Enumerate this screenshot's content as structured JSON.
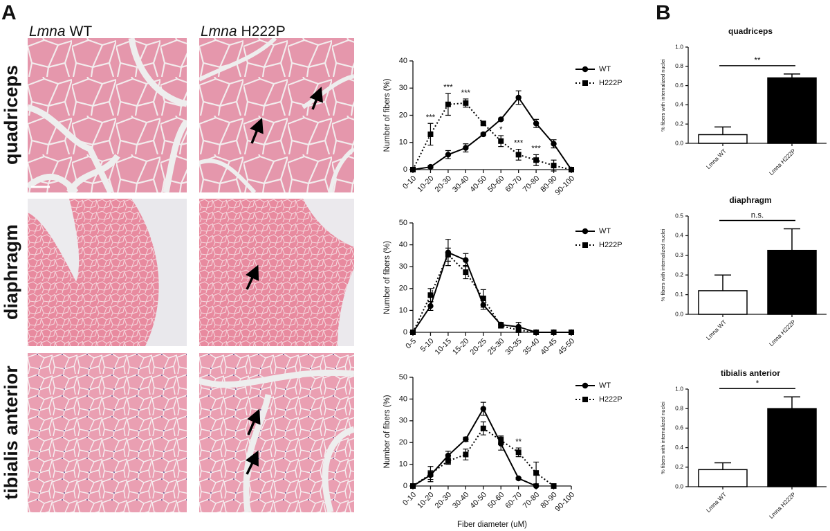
{
  "panel_labels": [
    "A",
    "B"
  ],
  "column_headers": [
    {
      "gene": "Lmna",
      "genotype": "WT"
    },
    {
      "gene": "Lmna",
      "genotype": "H222P"
    }
  ],
  "row_labels": [
    "quadriceps",
    "diaphragm",
    "tibialis anterior"
  ],
  "chart_data": [
    {
      "type": "line",
      "ylabel": "Number of fibers (%)",
      "categories": [
        "0-10",
        "10-20",
        "20-30",
        "30-40",
        "40-50",
        "50-60",
        "60-70",
        "70-80",
        "80-90",
        "90-100"
      ],
      "ylim": [
        0,
        40
      ],
      "yticks": [
        0,
        10,
        20,
        30,
        40
      ],
      "series": [
        {
          "name": "WT",
          "color": "#000000",
          "marker": "circle",
          "line_style": "solid",
          "values": [
            0,
            1,
            5.5,
            8,
            13,
            18.5,
            26.5,
            17,
            9.5,
            0
          ],
          "errors": [
            0,
            0.5,
            1.5,
            1.5,
            0.5,
            0.5,
            2.5,
            1.5,
            1.5,
            0
          ]
        },
        {
          "name": "H222P",
          "color": "#000000",
          "marker": "square",
          "line_style": "dotted",
          "values": [
            0,
            13,
            24,
            24.5,
            17,
            10.5,
            5.5,
            3.5,
            1.5,
            0
          ],
          "errors": [
            0,
            4,
            4,
            1.5,
            0.5,
            2,
            2,
            2,
            2,
            0
          ]
        }
      ],
      "significance": [
        {
          "category": "10-20",
          "text": "***"
        },
        {
          "category": "20-30",
          "text": "***"
        },
        {
          "category": "30-40",
          "text": "***"
        },
        {
          "category": "50-60",
          "text": "*"
        },
        {
          "category": "60-70",
          "text": "***"
        },
        {
          "category": "70-80",
          "text": "***"
        }
      ]
    },
    {
      "type": "line",
      "ylabel": "Number of fibers (%)",
      "categories": [
        "0-5",
        "5-10",
        "10-15",
        "15-20",
        "20-25",
        "25-30",
        "30-35",
        "35-40",
        "40-45",
        "45-50"
      ],
      "ylim": [
        0,
        50
      ],
      "yticks": [
        0,
        10,
        20,
        30,
        40,
        50
      ],
      "series": [
        {
          "name": "WT",
          "color": "#000000",
          "marker": "circle",
          "line_style": "solid",
          "values": [
            0,
            12,
            36.5,
            33,
            12.5,
            3.5,
            2.5,
            0,
            0,
            0
          ],
          "errors": [
            0,
            2,
            6,
            3,
            2,
            1,
            2,
            0,
            0,
            0
          ]
        },
        {
          "name": "H222P",
          "color": "#000000",
          "marker": "square",
          "line_style": "dotted",
          "values": [
            0,
            17,
            35.5,
            27.5,
            15.5,
            3,
            1,
            0,
            0,
            0
          ],
          "errors": [
            0,
            3,
            3,
            3,
            4,
            1,
            1,
            0,
            0,
            0
          ]
        }
      ]
    },
    {
      "type": "line",
      "ylabel": "Number of fibers (%)",
      "xlabel": "Fiber diameter (uM)",
      "categories": [
        "0-10",
        "10-20",
        "20-30",
        "30-40",
        "40-50",
        "50-60",
        "60-70",
        "70-80",
        "80-90",
        "90-100"
      ],
      "ylim": [
        0,
        50
      ],
      "yticks": [
        0,
        10,
        20,
        30,
        40,
        50
      ],
      "series": [
        {
          "name": "WT",
          "color": "#000000",
          "marker": "circle",
          "line_style": "solid",
          "values": [
            0,
            5,
            14,
            21.5,
            35.5,
            19.5,
            3.5,
            0,
            null,
            null
          ],
          "errors": [
            0,
            2,
            2,
            1,
            3,
            3,
            0.5,
            0,
            null,
            null
          ]
        },
        {
          "name": "H222P",
          "color": "#000000",
          "marker": "square",
          "line_style": "dotted",
          "values": [
            0,
            5.5,
            11.5,
            14.5,
            26.5,
            21,
            15.5,
            6,
            0,
            null
          ],
          "errors": [
            0,
            3.5,
            1.5,
            2.5,
            3,
            2,
            2,
            5,
            0,
            null
          ]
        }
      ],
      "significance": [
        {
          "category": "60-70",
          "text": "**"
        }
      ]
    },
    {
      "type": "bar",
      "title": "quadriceps",
      "ylabel": "% fibers with internalized nuclei",
      "categories": [
        "Lmna WT",
        "Lmna H222P"
      ],
      "values": [
        0.09,
        0.68
      ],
      "errors": [
        0.08,
        0.04
      ],
      "colors": [
        "#ffffff",
        "#000000"
      ],
      "ylim": [
        0,
        1
      ],
      "yticks": [
        {
          "value": 0,
          "label": "0.0"
        },
        0.2,
        0.4,
        0.6,
        0.8,
        {
          "value": 1,
          "label": "1.0"
        }
      ],
      "significance": "**"
    },
    {
      "type": "bar",
      "title": "diaphragm",
      "ylabel": "% fibers with internalized nuclei",
      "categories": [
        "Lmna WT",
        "Lmna H222P"
      ],
      "values": [
        0.12,
        0.325
      ],
      "errors": [
        0.08,
        0.11
      ],
      "colors": [
        "#ffffff",
        "#000000"
      ],
      "ylim": [
        0,
        0.5
      ],
      "yticks": [
        {
          "value": 0,
          "label": "0.0"
        },
        0.1,
        0.2,
        0.3,
        0.4,
        0.5
      ],
      "significance": "n.s."
    },
    {
      "type": "bar",
      "title": "tibialis anterior",
      "ylabel": "% fibers with internalized nuclei",
      "categories": [
        "Lmna WT",
        "Lmna H222P"
      ],
      "values": [
        0.175,
        0.8
      ],
      "errors": [
        0.07,
        0.12
      ],
      "colors": [
        "#ffffff",
        "#000000"
      ],
      "ylim": [
        0,
        1
      ],
      "yticks": [
        {
          "value": 0,
          "label": "0.0"
        },
        0.2,
        0.4,
        0.6,
        0.8,
        {
          "value": 1,
          "label": "1.0"
        }
      ],
      "significance": "*"
    }
  ]
}
